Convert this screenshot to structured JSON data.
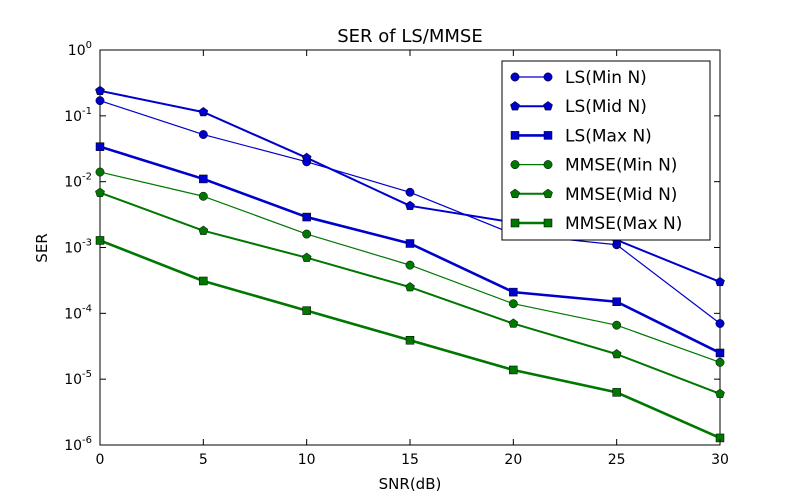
{
  "chart_data": {
    "type": "line",
    "title": "SER of LS/MMSE",
    "xlabel": "SNR(dB)",
    "ylabel": "SER",
    "xlim": [
      0,
      30
    ],
    "ylim": [
      1e-06,
      1
    ],
    "yscale": "log",
    "grid": false,
    "legend_position": "top-right",
    "x": [
      0,
      5,
      10,
      15,
      20,
      25,
      30
    ],
    "x_ticks": [
      "0",
      "5",
      "10",
      "15",
      "20",
      "25",
      "30"
    ],
    "y_ticks": [
      {
        "value": 1,
        "base": "10",
        "exp": "0"
      },
      {
        "value": 0.1,
        "base": "10",
        "exp": "-1"
      },
      {
        "value": 0.01,
        "base": "10",
        "exp": "-2"
      },
      {
        "value": 0.001,
        "base": "10",
        "exp": "-3"
      },
      {
        "value": 0.0001,
        "base": "10",
        "exp": "-4"
      },
      {
        "value": 1e-05,
        "base": "10",
        "exp": "-5"
      },
      {
        "value": 1e-06,
        "base": "10",
        "exp": "-6"
      }
    ],
    "series": [
      {
        "name": "LS(Min N)",
        "color": "#0000cc",
        "marker": "circle",
        "line_weight": "thin",
        "values": [
          0.17,
          0.052,
          0.02,
          0.0069,
          0.0016,
          0.0011,
          7e-05
        ]
      },
      {
        "name": "LS(Mid N)",
        "color": "#0000cc",
        "marker": "pentagon",
        "line_weight": "medium",
        "values": [
          0.24,
          0.114,
          0.023,
          0.0043,
          0.0024,
          0.0013,
          0.0003
        ]
      },
      {
        "name": "LS(Max N)",
        "color": "#0000cc",
        "marker": "square",
        "line_weight": "thick",
        "values": [
          0.034,
          0.011,
          0.0029,
          0.00115,
          0.00021,
          0.00015,
          2.5e-05
        ]
      },
      {
        "name": "MMSE(Min N)",
        "color": "#007700",
        "marker": "circle",
        "line_weight": "thin",
        "values": [
          0.014,
          0.006,
          0.0016,
          0.00054,
          0.00014,
          6.6e-05,
          1.8e-05
        ]
      },
      {
        "name": "MMSE(Mid N)",
        "color": "#007700",
        "marker": "pentagon",
        "line_weight": "medium",
        "values": [
          0.0068,
          0.0018,
          0.0007,
          0.00025,
          7e-05,
          2.4e-05,
          6e-06
        ]
      },
      {
        "name": "MMSE(Max N)",
        "color": "#007700",
        "marker": "square",
        "line_weight": "thick",
        "values": [
          0.00128,
          0.00031,
          0.00011,
          3.9e-05,
          1.38e-05,
          6.3e-06,
          1.28e-06
        ]
      }
    ]
  }
}
